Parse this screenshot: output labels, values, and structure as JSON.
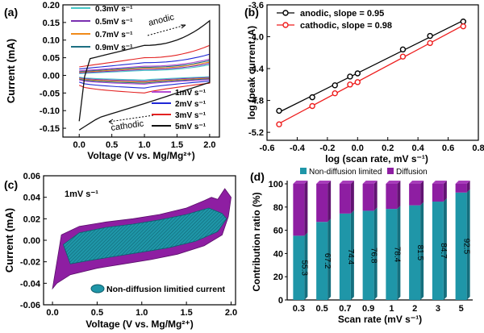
{
  "colors": {
    "c03": "#46c7c7",
    "c05": "#7a2fb0",
    "c07": "#f08a1a",
    "c09": "#1d6f82",
    "c1": "#b44ad3",
    "c2": "#1f27d6",
    "c3": "#e32222",
    "c5": "#111111",
    "anodic": "#000000",
    "cathodic": "#ee1c1c",
    "diffusion": "#8e1ea2",
    "nondiff": "#1f96a8"
  },
  "chart_data": [
    {
      "type": "line",
      "panel": "(a)",
      "xlabel": "Voltage (V vs. Mg/Mg²⁺)",
      "ylabel": "Current (mA)",
      "xlim": [
        -0.25,
        2.15
      ],
      "ylim": [
        -0.175,
        0.2
      ],
      "xticks": [
        "0.0",
        "0.5",
        "1.0",
        "1.5",
        "2.0"
      ],
      "yticks": [
        "-0.15",
        "-0.10",
        "-0.05",
        "0.00",
        "0.05",
        "0.10",
        "0.15",
        "0.20"
      ],
      "legend_top": [
        "0.3mV s⁻¹",
        "0.5mV s⁻¹",
        "0.7mV s⁻¹",
        "0.9mV s⁻¹"
      ],
      "legend_bottom": [
        "1mV s⁻¹",
        "2mV s⁻¹",
        "3mV s⁻¹",
        "5mV s⁻¹"
      ],
      "annotations": [
        "anodic",
        "cathodic"
      ],
      "series": [
        {
          "name": "0.3mV s⁻¹",
          "color_key": "c03",
          "upper_start": 0.005,
          "upper_mid": 0.014,
          "upper_end": 0.03,
          "lower_start": -0.005,
          "lower_mid": -0.013,
          "lower_end": -0.004
        },
        {
          "name": "0.5mV s⁻¹",
          "color_key": "c05",
          "upper_start": 0.007,
          "upper_mid": 0.017,
          "upper_end": 0.034,
          "lower_start": -0.007,
          "lower_mid": -0.016,
          "lower_end": -0.006
        },
        {
          "name": "0.7mV s⁻¹",
          "color_key": "c07",
          "upper_start": 0.009,
          "upper_mid": 0.02,
          "upper_end": 0.038,
          "lower_start": -0.009,
          "lower_mid": -0.019,
          "lower_end": -0.008
        },
        {
          "name": "0.9mV s⁻¹",
          "color_key": "c09",
          "upper_start": 0.011,
          "upper_mid": 0.023,
          "upper_end": 0.042,
          "lower_start": -0.011,
          "lower_mid": -0.022,
          "lower_end": -0.01
        },
        {
          "name": "1mV s⁻¹",
          "color_key": "c1",
          "upper_start": 0.013,
          "upper_mid": 0.026,
          "upper_end": 0.046,
          "lower_start": -0.013,
          "lower_mid": -0.025,
          "lower_end": -0.012
        },
        {
          "name": "2mV s⁻¹",
          "color_key": "c2",
          "upper_start": 0.018,
          "upper_mid": 0.036,
          "upper_end": 0.06,
          "lower_start": -0.019,
          "lower_mid": -0.036,
          "lower_end": -0.016
        },
        {
          "name": "3mV s⁻¹",
          "color_key": "c3",
          "upper_start": 0.024,
          "upper_mid": 0.05,
          "upper_end": 0.085,
          "lower_start": -0.028,
          "lower_mid": -0.05,
          "lower_end": -0.022
        },
        {
          "name": "5mV s⁻¹",
          "color_key": "c5",
          "upper_start": 0.04,
          "upper_mid": 0.085,
          "upper_end": 0.155,
          "lower_start": -0.14,
          "lower_mid": -0.085,
          "lower_end": -0.04
        }
      ]
    },
    {
      "type": "scatter",
      "panel": "(b)",
      "xlabel": "log (scan rate, mV s⁻¹)",
      "ylabel": "log (peak current, A)",
      "xlim": [
        -0.6,
        0.8
      ],
      "ylim": [
        -5.3,
        -3.6
      ],
      "xticks": [
        "-0.6",
        "-0.4",
        "-0.2",
        "0.0",
        "0.2",
        "0.4",
        "0.6",
        "0.8"
      ],
      "yticks": [
        "-5.2",
        "-4.8",
        "-4.4",
        "-4.0",
        "-3.6"
      ],
      "series": [
        {
          "name": "anodic, slope = 0.95",
          "color_key": "anodic",
          "x": [
            -0.52,
            -0.3,
            -0.15,
            -0.05,
            0.0,
            0.3,
            0.48,
            0.7
          ],
          "y": [
            -4.93,
            -4.76,
            -4.61,
            -4.5,
            -4.46,
            -4.16,
            -3.99,
            -3.81
          ]
        },
        {
          "name": "cathodic,  slope = 0.98",
          "color_key": "cathodic",
          "x": [
            -0.52,
            -0.3,
            -0.15,
            -0.05,
            0.0,
            0.3,
            0.48,
            0.7
          ],
          "y": [
            -5.1,
            -4.87,
            -4.71,
            -4.6,
            -4.57,
            -4.25,
            -4.08,
            -3.87
          ]
        }
      ]
    },
    {
      "type": "area",
      "panel": "(c)",
      "xlabel": "Voltage (V vs. Mg/Mg²⁺)",
      "ylabel": "Current (mA)",
      "xlim": [
        -0.1,
        2.05
      ],
      "ylim": [
        -0.06,
        0.06
      ],
      "xticks": [
        "0.0",
        "0.5",
        "1.0",
        "1.5",
        "2.0"
      ],
      "yticks": [
        "-0.06",
        "-0.04",
        "-0.02",
        "0.00",
        "0.02",
        "0.04",
        "0.06"
      ],
      "annotation": "1mV s⁻¹",
      "legend": "Non-diffusion limitied current",
      "outer": {
        "upper_x": [
          0.0,
          0.1,
          0.3,
          0.6,
          0.9,
          1.2,
          1.5,
          1.7,
          1.78,
          1.85,
          1.93,
          2.0
        ],
        "upper_y": [
          -0.045,
          0.005,
          0.013,
          0.017,
          0.02,
          0.024,
          0.03,
          0.037,
          0.04,
          0.038,
          0.048,
          0.04
        ],
        "lower_x": [
          2.0,
          1.97,
          1.9,
          1.7,
          1.4,
          1.1,
          0.8,
          0.5,
          0.2,
          0.05,
          0.0
        ],
        "lower_y": [
          0.04,
          0.022,
          0.005,
          -0.005,
          -0.013,
          -0.018,
          -0.022,
          -0.026,
          -0.032,
          -0.04,
          -0.045
        ]
      },
      "inner": {
        "upper_x": [
          0.12,
          0.3,
          0.6,
          0.9,
          1.2,
          1.5,
          1.75,
          1.9,
          1.95
        ],
        "upper_y": [
          -0.004,
          0.007,
          0.012,
          0.015,
          0.019,
          0.024,
          0.03,
          0.025,
          0.02
        ],
        "lower_x": [
          1.95,
          1.85,
          1.6,
          1.3,
          1.0,
          0.7,
          0.4,
          0.2,
          0.12
        ],
        "lower_y": [
          0.02,
          0.008,
          -0.001,
          -0.007,
          -0.011,
          -0.015,
          -0.019,
          -0.022,
          -0.004
        ]
      }
    },
    {
      "type": "bar",
      "panel": "(d)",
      "xlabel": "Scan rate (mV s⁻¹)",
      "ylabel": "Contribution ratio (%)",
      "ylim": [
        0,
        100
      ],
      "yticks": [
        "0",
        "20",
        "40",
        "60",
        "80",
        "100"
      ],
      "categories": [
        "0.3",
        "0.5",
        "0.7",
        "0.9",
        "1",
        "2",
        "3",
        "5"
      ],
      "series": [
        {
          "name": "Non-diffusion limited",
          "color_key": "nondiff",
          "values": [
            55.3,
            67.2,
            74.4,
            76.8,
            78.4,
            81.5,
            84.7,
            92.5
          ]
        },
        {
          "name": "Diffusion",
          "color_key": "diffusion",
          "values": [
            44.7,
            32.8,
            25.6,
            23.2,
            21.6,
            18.5,
            15.3,
            7.5
          ]
        }
      ],
      "data_labels": [
        "55.3",
        "67.2",
        "74.4",
        "76.8",
        "78.4",
        "81.5",
        "84.7",
        "92.5"
      ]
    }
  ]
}
